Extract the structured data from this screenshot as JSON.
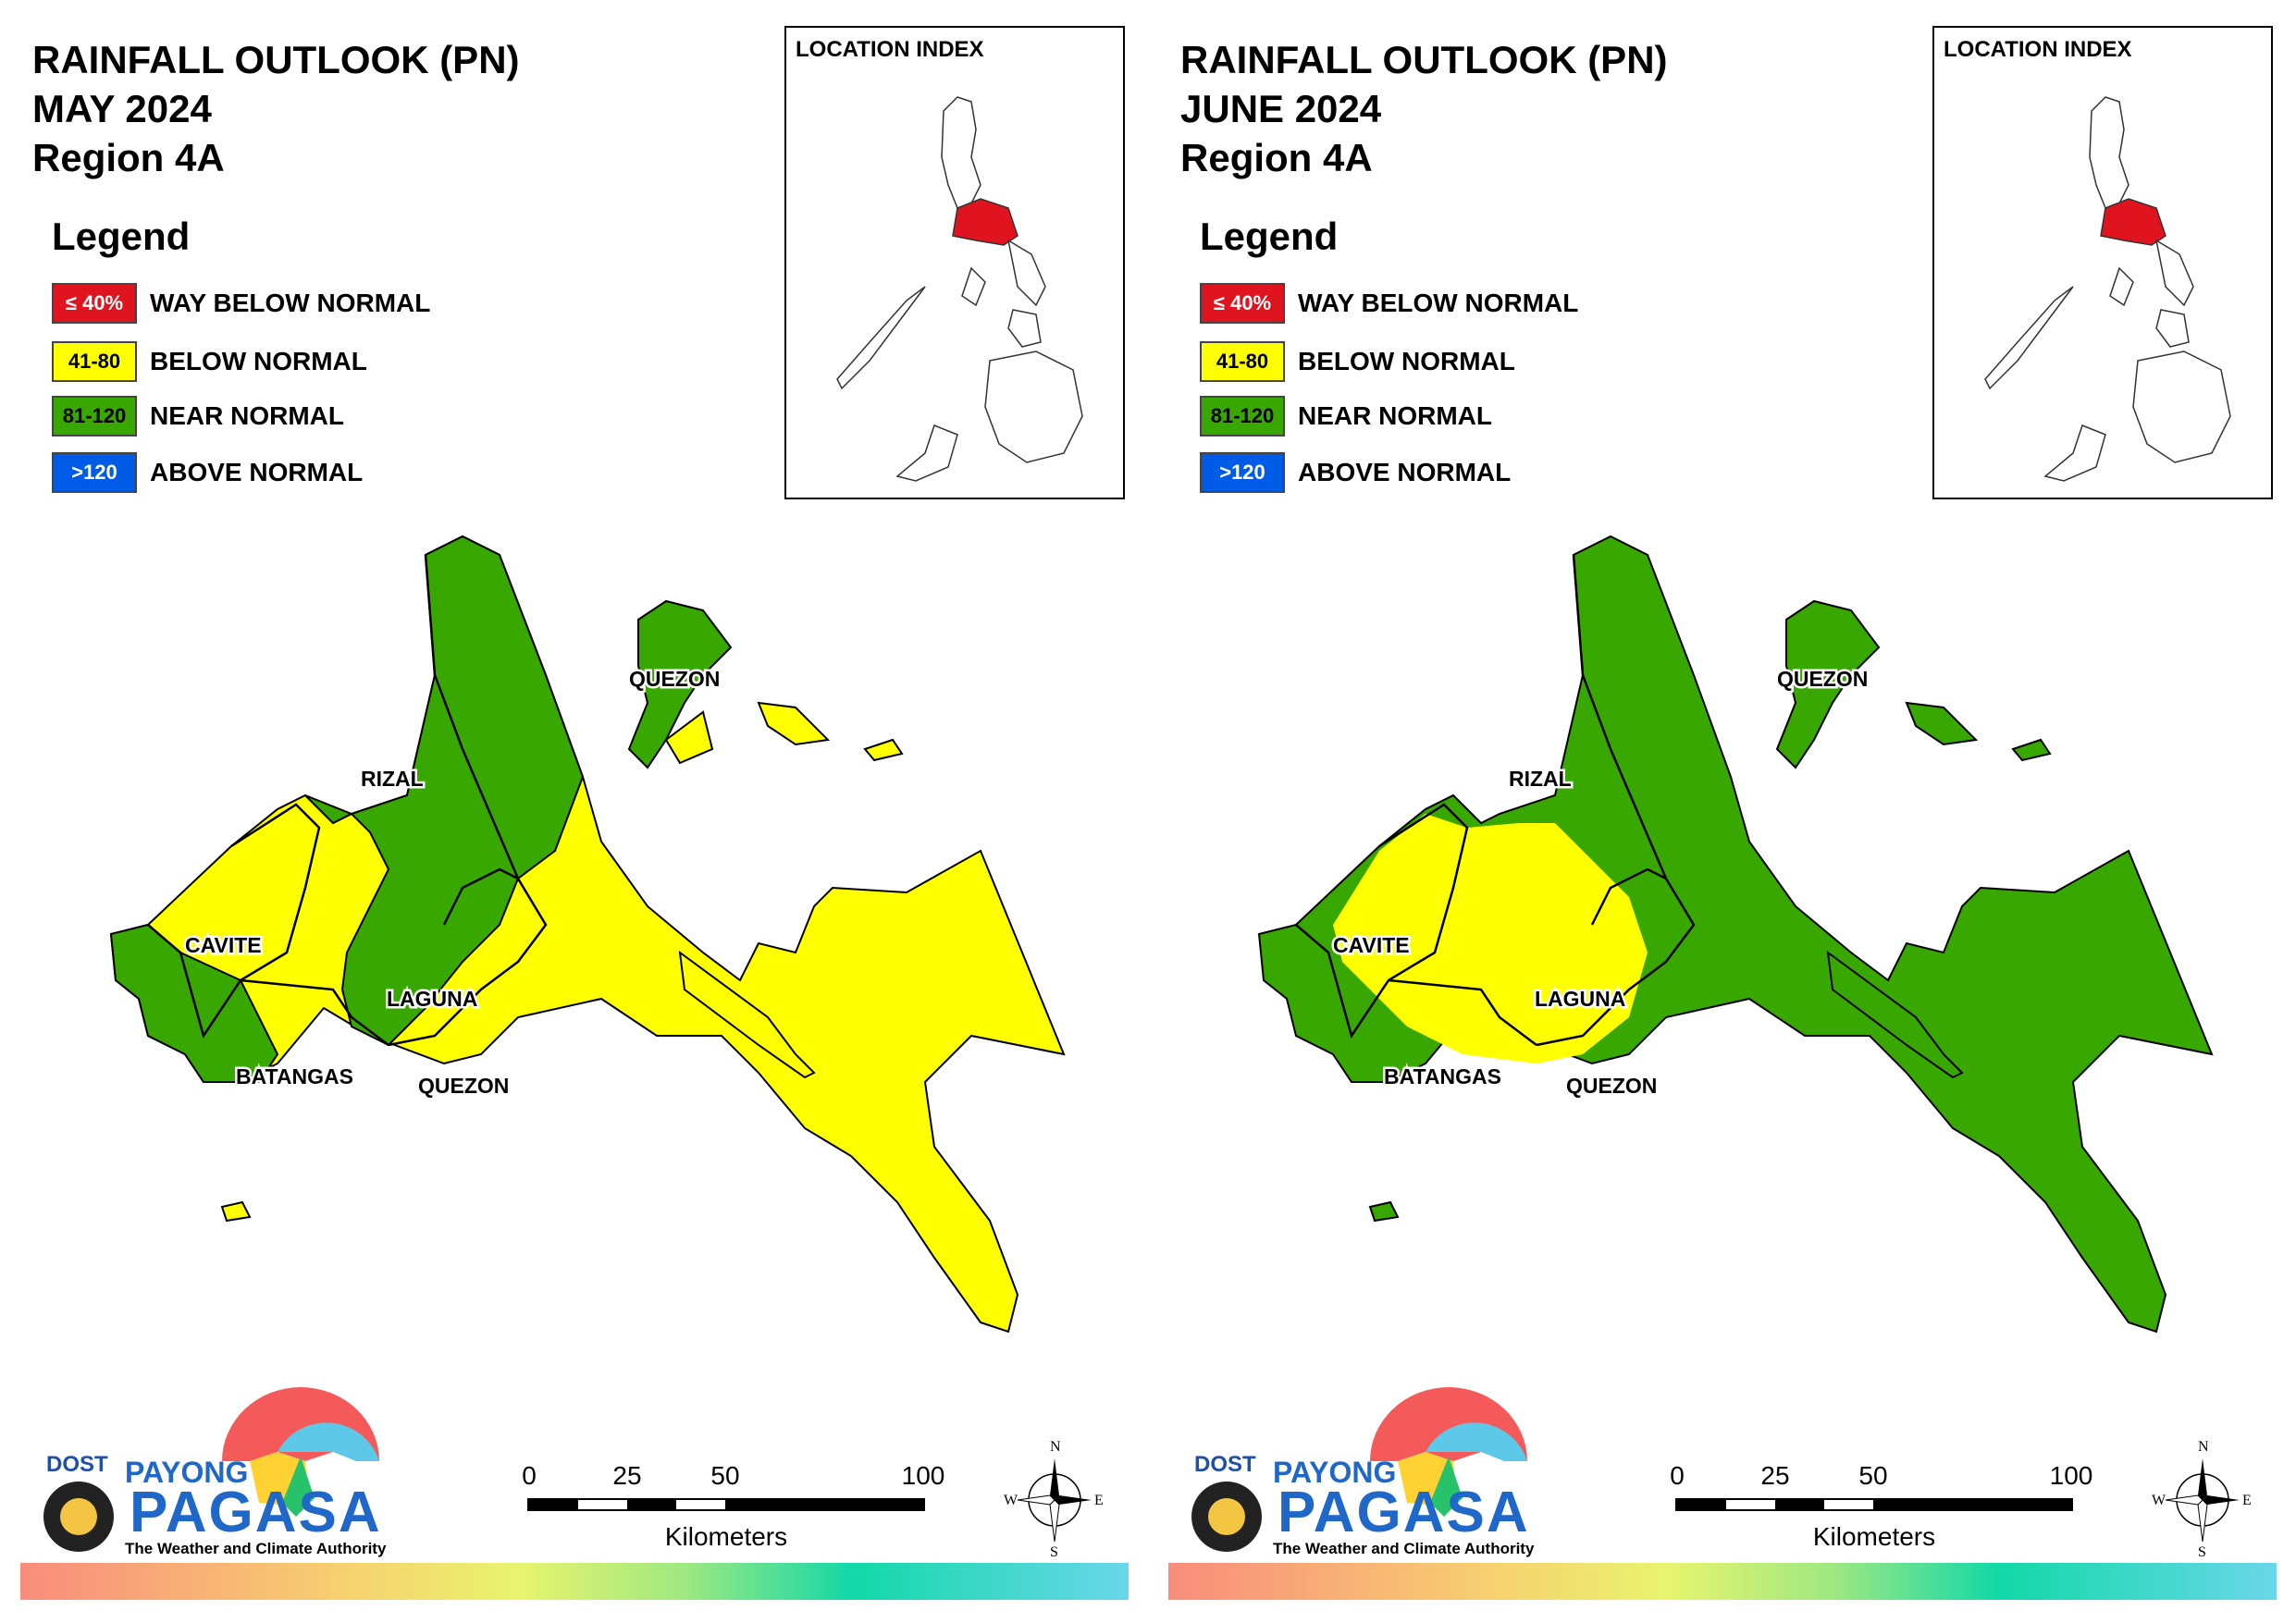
{
  "colors": {
    "way_below": "#e0141e",
    "below": "#ffff00",
    "near": "#38a800",
    "above": "#005ce6"
  },
  "legend": {
    "heading": "Legend",
    "items": [
      {
        "code": "≤ 40%",
        "label": "WAY BELOW NORMAL",
        "color": "#e0141e",
        "text_color": "#ffffff"
      },
      {
        "code": "41-80",
        "label": "BELOW NORMAL",
        "color": "#ffff00",
        "text_color": "#000000"
      },
      {
        "code": "81-120",
        "label": "NEAR NORMAL",
        "color": "#38a800",
        "text_color": "#000000"
      },
      {
        "code": ">120",
        "label": "ABOVE NORMAL",
        "color": "#005ce6",
        "text_color": "#ffffff"
      }
    ]
  },
  "location_index": {
    "title": "LOCATION INDEX"
  },
  "province_labels": [
    "QUEZON",
    "RIZAL",
    "CAVITE",
    "LAGUNA",
    "BATANGAS",
    "QUEZON"
  ],
  "maps": [
    {
      "title_line1": "RAINFALL OUTLOOK (PN)",
      "title_line2": "MAY 2024",
      "title_line3": "Region 4A",
      "dominant_category": "BELOW NORMAL",
      "near_normal_areas": "most of Rizal, eastern Laguna, western Cavite/Batangas coast, northern Quezon (Polillo)"
    },
    {
      "title_line1": "RAINFALL OUTLOOK (PN)",
      "title_line2": "JUNE 2024",
      "title_line3": "Region 4A",
      "dominant_category": "NEAR NORMAL",
      "below_normal_areas": "Cavite, western Laguna, northern Batangas"
    }
  ],
  "scale": {
    "ticks": [
      "0",
      "25",
      "50",
      "100"
    ],
    "unit": "Kilometers"
  },
  "compass": {
    "n": "N",
    "s": "S",
    "e": "E",
    "w": "W"
  },
  "branding": {
    "dost": "DOST",
    "payong": "PAYONG",
    "pagasa": "PAGASA",
    "tagline": "The Weather and Climate Authority"
  }
}
